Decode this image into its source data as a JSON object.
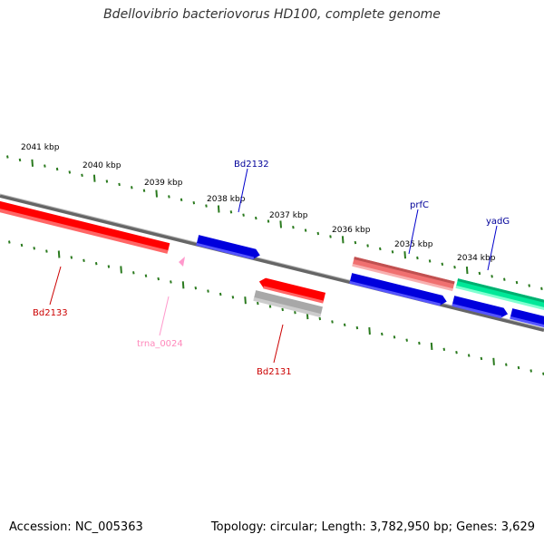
{
  "title": "Bdellovibrio bacteriovorus HD100, complete genome",
  "footer": {
    "accession": "Accession: NC_005363",
    "summary": "Topology: circular; Length: 3,782,950 bp; Genes: 3,629"
  },
  "colors": {
    "backbone": "#777777",
    "tick": "#2a7a1e",
    "gene_red": "#ff0000",
    "gene_blue": "#0000dd",
    "gene_pink": "#f08080",
    "gene_green": "#00f0a0",
    "gene_gray": "#b0b0b0",
    "trna": "#ff99cc"
  },
  "scale_labels": [
    "2041 kbp",
    "2040 kbp",
    "2039 kbp",
    "2038 kbp",
    "2037 kbp",
    "2036 kbp",
    "2035 kbp",
    "2034 kbp"
  ],
  "gene_labels": {
    "bd2132": "Bd2132",
    "prfc": "prfC",
    "yadg": "yadG",
    "bd2133": "Bd2133",
    "trna_0024": "trna_0024",
    "bd2131": "Bd2131"
  }
}
